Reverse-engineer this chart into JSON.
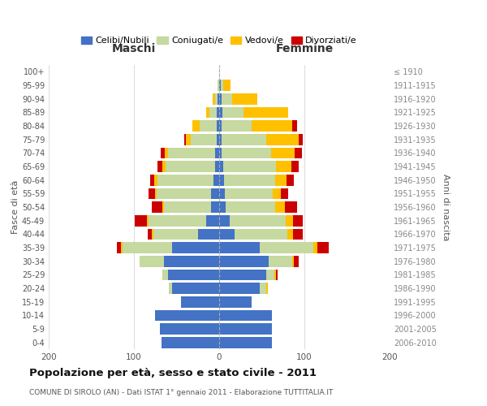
{
  "age_groups": [
    "0-4",
    "5-9",
    "10-14",
    "15-19",
    "20-24",
    "25-29",
    "30-34",
    "35-39",
    "40-44",
    "45-49",
    "50-54",
    "55-59",
    "60-64",
    "65-69",
    "70-74",
    "75-79",
    "80-84",
    "85-89",
    "90-94",
    "95-99",
    "100+"
  ],
  "birth_years": [
    "2006-2010",
    "2001-2005",
    "1996-2000",
    "1991-1995",
    "1986-1990",
    "1981-1985",
    "1976-1980",
    "1971-1975",
    "1966-1970",
    "1961-1965",
    "1956-1960",
    "1951-1955",
    "1946-1950",
    "1941-1945",
    "1936-1940",
    "1931-1935",
    "1926-1930",
    "1921-1925",
    "1916-1920",
    "1911-1915",
    "≤ 1910"
  ],
  "males_celibe": [
    68,
    70,
    75,
    45,
    55,
    60,
    65,
    55,
    25,
    15,
    10,
    10,
    7,
    5,
    5,
    3,
    3,
    3,
    2,
    0,
    0
  ],
  "males_coniugato": [
    0,
    0,
    0,
    0,
    4,
    7,
    28,
    58,
    52,
    68,
    55,
    63,
    65,
    58,
    55,
    30,
    20,
    8,
    3,
    2,
    0
  ],
  "males_vedovo": [
    0,
    0,
    0,
    0,
    0,
    0,
    0,
    2,
    2,
    2,
    2,
    2,
    4,
    4,
    4,
    6,
    8,
    4,
    3,
    0,
    0
  ],
  "males_divorziato": [
    0,
    0,
    0,
    0,
    0,
    0,
    0,
    5,
    5,
    14,
    12,
    8,
    5,
    5,
    5,
    2,
    0,
    0,
    0,
    0,
    0
  ],
  "females_nubile": [
    62,
    62,
    62,
    38,
    48,
    55,
    58,
    48,
    18,
    12,
    8,
    7,
    6,
    5,
    3,
    3,
    3,
    4,
    3,
    2,
    0
  ],
  "females_coniugata": [
    0,
    0,
    0,
    0,
    7,
    10,
    28,
    62,
    62,
    66,
    58,
    56,
    60,
    62,
    58,
    52,
    35,
    25,
    12,
    3,
    0
  ],
  "females_vedova": [
    0,
    0,
    0,
    0,
    2,
    2,
    2,
    5,
    7,
    9,
    11,
    9,
    13,
    18,
    28,
    38,
    48,
    52,
    30,
    8,
    0
  ],
  "females_divorziata": [
    0,
    0,
    0,
    0,
    0,
    2,
    5,
    14,
    11,
    11,
    14,
    9,
    9,
    8,
    8,
    5,
    5,
    0,
    0,
    0,
    0
  ],
  "color_celibe": "#4472c4",
  "color_coniugato": "#c5d9a0",
  "color_vedovo": "#ffc000",
  "color_divorziato": "#cc0000",
  "title": "Popolazione per età, sesso e stato civile - 2011",
  "subtitle": "COMUNE DI SIROLO (AN) - Dati ISTAT 1° gennaio 2011 - Elaborazione TUTTITALIA.IT",
  "label_maschi": "Maschi",
  "label_femmine": "Femmine",
  "label_fasce": "Fasce di età",
  "label_anni": "Anni di nascita",
  "legend_labels": [
    "Celibi/Nubili",
    "Coniugati/e",
    "Vedovi/e",
    "Divorziati/e"
  ],
  "xlim": 200,
  "bg_color": "#ffffff",
  "grid_color": "#cccccc"
}
